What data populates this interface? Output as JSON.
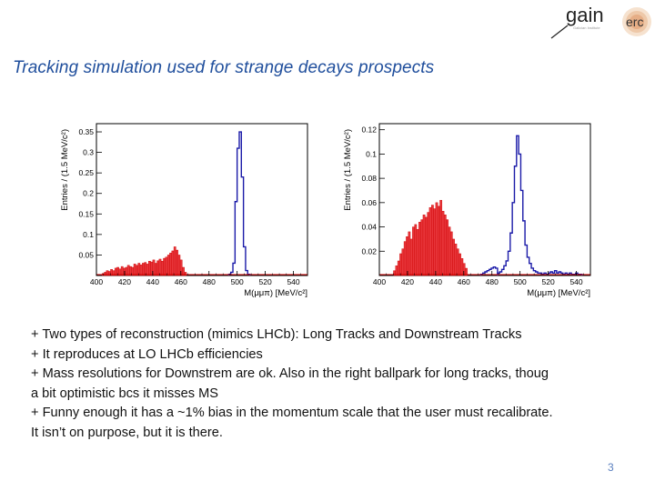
{
  "slide": {
    "title": "Tracking simulation used for strange decays prospects",
    "page_number": "3",
    "logo": {
      "text_main": "gain",
      "text_sub": "erc"
    },
    "bullets": [
      "+ Two types of reconstruction (mimics LHCb): Long Tracks and Downstream Tracks",
      "+ It reproduces at LO LHCb efficiencies",
      "+ Mass resolutions for Downstrem are ok. Also in the right ballpark for long tracks, thoug a bit optimistic bcs it misses MS",
      "+ Funny enough it has a ~1% bias in the momentum scale that the user must recalibrate. It isn’t on purpose, but it is there."
    ]
  },
  "colors": {
    "red_fill": "#e8353a",
    "red_line": "#cc0000",
    "blue_line": "#1a1aa8",
    "title": "#1f4e9c"
  },
  "chart_data": [
    {
      "type": "bar",
      "xlabel": "M(μμπ) [MeV/c²]",
      "ylabel": "Entries / (1.5 MeV/c²)",
      "xlim": [
        400,
        550
      ],
      "ylim": [
        0,
        0.37
      ],
      "xticks": [
        400,
        420,
        440,
        460,
        480,
        500,
        520,
        540
      ],
      "yticks": [
        0.05,
        0.1,
        0.15,
        0.2,
        0.25,
        0.3,
        0.35
      ],
      "ytick_labels": [
        "0.05",
        "0.1",
        "0.15",
        "0.2",
        "0.25",
        "0.3",
        "0.35"
      ],
      "bin_width": 1.5,
      "series": [
        {
          "style": "red-filled",
          "x_start": 404,
          "values": [
            0.005,
            0.008,
            0.012,
            0.01,
            0.015,
            0.012,
            0.018,
            0.02,
            0.016,
            0.022,
            0.018,
            0.02,
            0.025,
            0.022,
            0.02,
            0.028,
            0.025,
            0.03,
            0.026,
            0.03,
            0.032,
            0.028,
            0.035,
            0.033,
            0.038,
            0.03,
            0.036,
            0.04,
            0.035,
            0.042,
            0.045,
            0.05,
            0.055,
            0.06,
            0.07,
            0.062,
            0.05,
            0.038,
            0.02,
            0.008
          ]
        },
        {
          "style": "blue-line",
          "x_start": 494,
          "values": [
            0.003,
            0.008,
            0.03,
            0.18,
            0.31,
            0.35,
            0.24,
            0.07,
            0.012,
            0.003
          ]
        }
      ]
    },
    {
      "type": "bar",
      "xlabel": "M(μμπ) [MeV/c²]",
      "ylabel": "Entries / (1.5 MeV/c²)",
      "xlim": [
        400,
        550
      ],
      "ylim": [
        0,
        0.125
      ],
      "xticks": [
        400,
        420,
        440,
        460,
        480,
        500,
        520,
        540
      ],
      "yticks": [
        0.02,
        0.04,
        0.06,
        0.08,
        0.1,
        0.12
      ],
      "ytick_labels": [
        "0.02",
        "0.04",
        "0.06",
        "0.08",
        "0.1",
        "0.12"
      ],
      "bin_width": 1.5,
      "series": [
        {
          "style": "red-filled",
          "x_start": 410,
          "values": [
            0.004,
            0.008,
            0.012,
            0.018,
            0.022,
            0.028,
            0.032,
            0.036,
            0.03,
            0.04,
            0.042,
            0.038,
            0.044,
            0.046,
            0.05,
            0.048,
            0.052,
            0.056,
            0.058,
            0.055,
            0.06,
            0.057,
            0.062,
            0.053,
            0.05,
            0.046,
            0.04,
            0.036,
            0.03,
            0.026,
            0.022,
            0.018,
            0.014,
            0.01,
            0.006
          ]
        },
        {
          "style": "blue-line",
          "x_start": 484,
          "values": [
            0.002,
            0.003,
            0.005,
            0.008,
            0.012,
            0.02,
            0.035,
            0.06,
            0.09,
            0.115,
            0.1,
            0.07,
            0.045,
            0.025,
            0.015,
            0.01,
            0.006,
            0.004,
            0.003,
            0.002,
            0.002,
            0.001,
            0.002,
            0.001
          ]
        },
        {
          "style": "blue-line",
          "x_start": 472,
          "values": [
            0.001,
            0.002,
            0.003,
            0.004,
            0.005,
            0.006,
            0.007,
            0.006
          ]
        },
        {
          "style": "blue-line",
          "x_start": 520,
          "values": [
            0.002,
            0.003,
            0.002,
            0.004,
            0.002,
            0.003,
            0.002,
            0.001,
            0.002,
            0.001,
            0.002,
            0.001,
            0.001,
            0.002,
            0.001,
            0.001
          ]
        }
      ]
    }
  ]
}
